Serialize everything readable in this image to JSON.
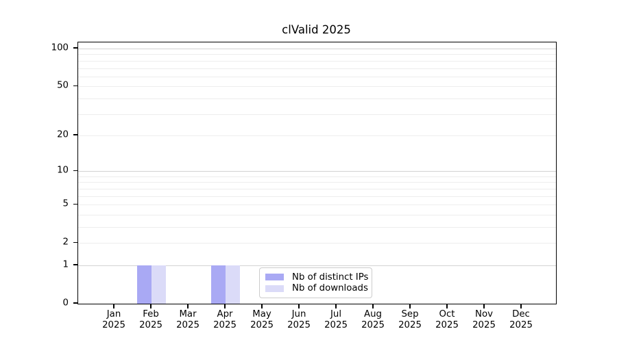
{
  "title": "clValid 2025",
  "chart_data": {
    "type": "bar",
    "title": "clValid 2025",
    "xlabel": "",
    "ylabel": "",
    "categories": [
      {
        "month": "Jan",
        "year": "2025"
      },
      {
        "month": "Feb",
        "year": "2025"
      },
      {
        "month": "Mar",
        "year": "2025"
      },
      {
        "month": "Apr",
        "year": "2025"
      },
      {
        "month": "May",
        "year": "2025"
      },
      {
        "month": "Jun",
        "year": "2025"
      },
      {
        "month": "Jul",
        "year": "2025"
      },
      {
        "month": "Aug",
        "year": "2025"
      },
      {
        "month": "Sep",
        "year": "2025"
      },
      {
        "month": "Oct",
        "year": "2025"
      },
      {
        "month": "Nov",
        "year": "2025"
      },
      {
        "month": "Dec",
        "year": "2025"
      }
    ],
    "series": [
      {
        "name": "Nb of distinct IPs",
        "color": "#a9a9f4",
        "values": [
          0,
          1,
          0,
          1,
          0,
          0,
          0,
          0,
          0,
          0,
          0,
          0
        ]
      },
      {
        "name": "Nb of downloads",
        "color": "#dbdbf8",
        "values": [
          0,
          1,
          0,
          1,
          0,
          0,
          0,
          0,
          0,
          0,
          0,
          0
        ]
      }
    ],
    "yscale": "log1p",
    "ylim": [
      0,
      112
    ],
    "ytick_values": [
      0,
      1,
      2,
      5,
      10,
      20,
      50,
      100
    ],
    "grid": {
      "major_values": [
        1,
        10,
        100
      ],
      "minor_values": [
        2,
        3,
        4,
        5,
        6,
        7,
        8,
        9,
        20,
        30,
        40,
        50,
        60,
        70,
        80,
        90
      ],
      "major_color": "#d2d2d2",
      "minor_color": "#ededed"
    },
    "legend": {
      "position": "lower center"
    }
  }
}
